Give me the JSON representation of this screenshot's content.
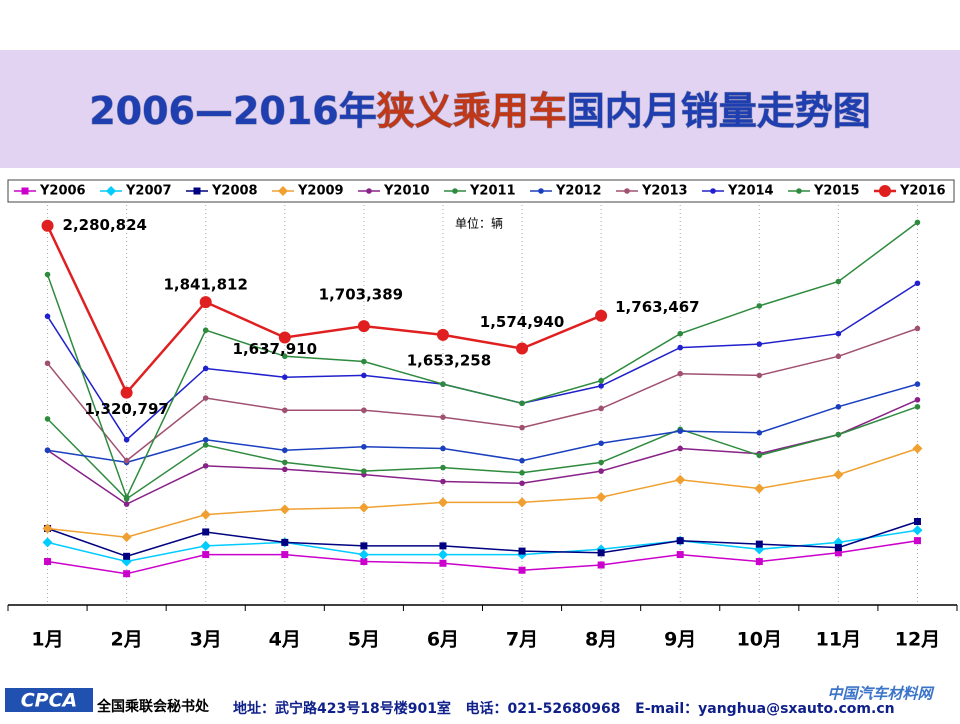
{
  "header": {
    "title_parts": [
      "2006—2016年",
      "狭义乘用车",
      "国内月销量走势图"
    ]
  },
  "chart_data": {
    "type": "line",
    "unit": "单位：辆",
    "categories": [
      "1月",
      "2月",
      "3月",
      "4月",
      "5月",
      "6月",
      "7月",
      "8月",
      "9月",
      "10月",
      "11月",
      "12月"
    ],
    "ylim": [
      100000,
      2400000
    ],
    "grid": true,
    "series": [
      {
        "name": "Y2006",
        "color": "#cc00cc",
        "marker": "square",
        "values": [
          350000,
          280000,
          390000,
          390000,
          350000,
          340000,
          300000,
          330000,
          390000,
          350000,
          400000,
          470000
        ]
      },
      {
        "name": "Y2007",
        "color": "#00ccff",
        "marker": "diamond",
        "values": [
          460000,
          350000,
          440000,
          460000,
          390000,
          390000,
          390000,
          420000,
          470000,
          420000,
          460000,
          530000
        ]
      },
      {
        "name": "Y2008",
        "color": "#000080",
        "marker": "square",
        "values": [
          540000,
          380000,
          520000,
          460000,
          440000,
          440000,
          410000,
          400000,
          470000,
          450000,
          430000,
          580000
        ]
      },
      {
        "name": "Y2009",
        "color": "#f0a030",
        "marker": "diamond",
        "values": [
          540000,
          490000,
          620000,
          650000,
          660000,
          690000,
          690000,
          720000,
          820000,
          770000,
          850000,
          1000000
        ]
      },
      {
        "name": "Y2010",
        "color": "#882288",
        "marker": "circle",
        "values": [
          990000,
          680000,
          900000,
          880000,
          850000,
          810000,
          800000,
          870000,
          1000000,
          970000,
          1080000,
          1280000
        ]
      },
      {
        "name": "Y2011",
        "color": "#2e8b3e",
        "marker": "circle",
        "values": [
          1170000,
          710000,
          1020000,
          920000,
          870000,
          890000,
          860000,
          920000,
          1110000,
          960000,
          1080000,
          1240000
        ]
      },
      {
        "name": "Y2012",
        "color": "#1a3fbf",
        "marker": "circle",
        "values": [
          990000,
          920000,
          1050000,
          990000,
          1010000,
          1000000,
          930000,
          1030000,
          1100000,
          1090000,
          1240000,
          1370000
        ]
      },
      {
        "name": "Y2013",
        "color": "#a05070",
        "marker": "circle",
        "values": [
          1490000,
          930000,
          1290000,
          1220000,
          1220000,
          1180000,
          1120000,
          1230000,
          1430000,
          1420000,
          1530000,
          1690000
        ]
      },
      {
        "name": "Y2014",
        "color": "#2020cc",
        "marker": "circle",
        "values": [
          1760000,
          1050000,
          1460000,
          1410000,
          1420000,
          1370000,
          1260000,
          1360000,
          1580000,
          1600000,
          1660000,
          1950000
        ]
      },
      {
        "name": "Y2015",
        "color": "#2e8b3e",
        "marker": "circle",
        "values": [
          2000000,
          720000,
          1680000,
          1530000,
          1500000,
          1370000,
          1260000,
          1390000,
          1660000,
          1820000,
          1960000,
          2300000
        ]
      },
      {
        "name": "Y2016",
        "color": "#e02020",
        "marker": "bigcircle",
        "values": [
          2280824,
          1320797,
          1841812,
          1637910,
          1703389,
          1653258,
          1574940,
          1763467,
          null,
          null,
          null,
          null
        ],
        "value_labels": [
          "2,280,824",
          "1,320,797",
          "1,841,812",
          "1,637,910",
          "1,703,389",
          "1,653,258",
          "1,574,940",
          "1,763,467",
          null,
          null,
          null,
          null
        ]
      }
    ]
  },
  "footer": {
    "logo": "CPCA",
    "org": "全国乘联会秘书处",
    "contact": "地址：武宁路423号18号楼901室   电话：021-52680968   E-mail：yanghua@sxauto.com.cn",
    "watermark": "中国汽车材料网"
  }
}
